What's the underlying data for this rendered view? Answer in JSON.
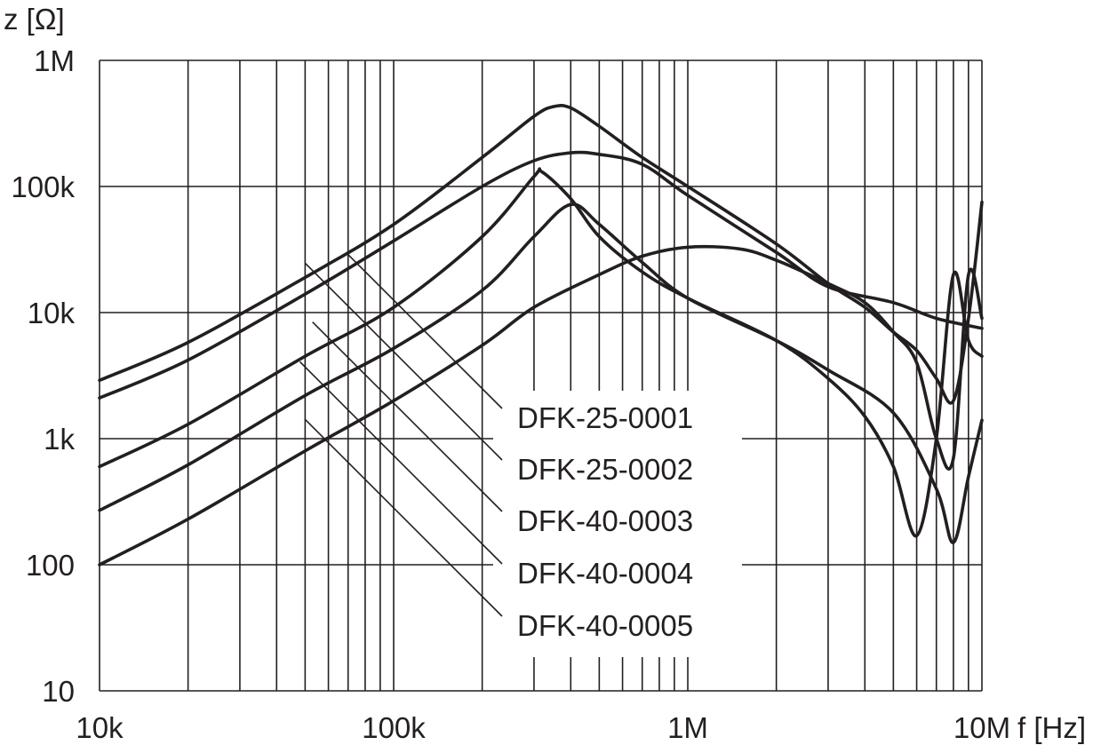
{
  "chart_data": {
    "type": "line",
    "title": "",
    "ylabel": "z [Ω]",
    "xlabel": "f [Hz]",
    "x_scale": "log",
    "y_scale": "log",
    "xlim": [
      10000,
      10000000
    ],
    "ylim": [
      10,
      1000000
    ],
    "x_tick_values": [
      10000,
      100000,
      1000000,
      10000000
    ],
    "x_tick_labels": [
      "10k",
      "100k",
      "1M",
      "10M"
    ],
    "y_tick_values": [
      10,
      100,
      1000,
      10000,
      100000,
      1000000
    ],
    "y_tick_labels": [
      "10",
      "100",
      "1k",
      "10k",
      "100k",
      "1M"
    ],
    "grid": true,
    "legend": "inline labels with leader lines",
    "series": [
      {
        "name": "DFK-25-0001",
        "points": [
          [
            10000,
            2900
          ],
          [
            20000,
            5800
          ],
          [
            50000,
            19000
          ],
          [
            100000,
            50000
          ],
          [
            200000,
            170000
          ],
          [
            300000,
            360000
          ],
          [
            350000,
            430000
          ],
          [
            400000,
            420000
          ],
          [
            500000,
            300000
          ],
          [
            700000,
            170000
          ],
          [
            1000000,
            100000
          ],
          [
            2000000,
            35000
          ],
          [
            3000000,
            17000
          ],
          [
            4000000,
            11000
          ],
          [
            5000000,
            7000
          ],
          [
            6000000,
            5000
          ],
          [
            7000000,
            3000
          ],
          [
            8000000,
            2000
          ],
          [
            9000000,
            9000
          ],
          [
            10000000,
            75000
          ]
        ]
      },
      {
        "name": "DFK-25-0002",
        "points": [
          [
            10000,
            2100
          ],
          [
            20000,
            4200
          ],
          [
            50000,
            14000
          ],
          [
            100000,
            37000
          ],
          [
            200000,
            100000
          ],
          [
            300000,
            160000
          ],
          [
            400000,
            185000
          ],
          [
            500000,
            180000
          ],
          [
            700000,
            150000
          ],
          [
            1000000,
            85000
          ],
          [
            2000000,
            30000
          ],
          [
            3000000,
            16000
          ],
          [
            5000000,
            12000
          ],
          [
            7000000,
            9000
          ],
          [
            10000000,
            7500
          ]
        ]
      },
      {
        "name": "DFK-40-0003",
        "points": [
          [
            10000,
            600
          ],
          [
            20000,
            1300
          ],
          [
            50000,
            4500
          ],
          [
            100000,
            11000
          ],
          [
            200000,
            40000
          ],
          [
            300000,
            120000
          ],
          [
            320000,
            130000
          ],
          [
            400000,
            80000
          ],
          [
            500000,
            40000
          ],
          [
            700000,
            21000
          ],
          [
            1000000,
            13000
          ],
          [
            2000000,
            6000
          ],
          [
            3000000,
            3000
          ],
          [
            4000000,
            1500
          ],
          [
            5000000,
            600
          ],
          [
            6000000,
            170
          ],
          [
            7000000,
            1000
          ],
          [
            8000000,
            20000
          ],
          [
            9000000,
            6000
          ],
          [
            10000000,
            4500
          ]
        ]
      },
      {
        "name": "DFK-40-0004",
        "points": [
          [
            10000,
            270
          ],
          [
            20000,
            620
          ],
          [
            50000,
            2200
          ],
          [
            100000,
            5200
          ],
          [
            200000,
            15000
          ],
          [
            300000,
            40000
          ],
          [
            400000,
            72000
          ],
          [
            500000,
            50000
          ],
          [
            700000,
            25000
          ],
          [
            1000000,
            13000
          ],
          [
            2000000,
            6000
          ],
          [
            3000000,
            3500
          ],
          [
            5000000,
            1600
          ],
          [
            7000000,
            400
          ],
          [
            8000000,
            150
          ],
          [
            9000000,
            500
          ],
          [
            10000000,
            1400
          ]
        ]
      },
      {
        "name": "DFK-40-0005",
        "points": [
          [
            10000,
            100
          ],
          [
            20000,
            230
          ],
          [
            50000,
            800
          ],
          [
            100000,
            2000
          ],
          [
            200000,
            5500
          ],
          [
            300000,
            11000
          ],
          [
            500000,
            20000
          ],
          [
            700000,
            28000
          ],
          [
            1000000,
            33000
          ],
          [
            1500000,
            32000
          ],
          [
            2000000,
            26000
          ],
          [
            3000000,
            17000
          ],
          [
            4000000,
            12000
          ],
          [
            5000000,
            7000
          ],
          [
            6000000,
            4000
          ],
          [
            7000000,
            1000
          ],
          [
            8000000,
            700
          ],
          [
            9000000,
            20000
          ],
          [
            10000000,
            9000
          ]
        ]
      }
    ]
  }
}
